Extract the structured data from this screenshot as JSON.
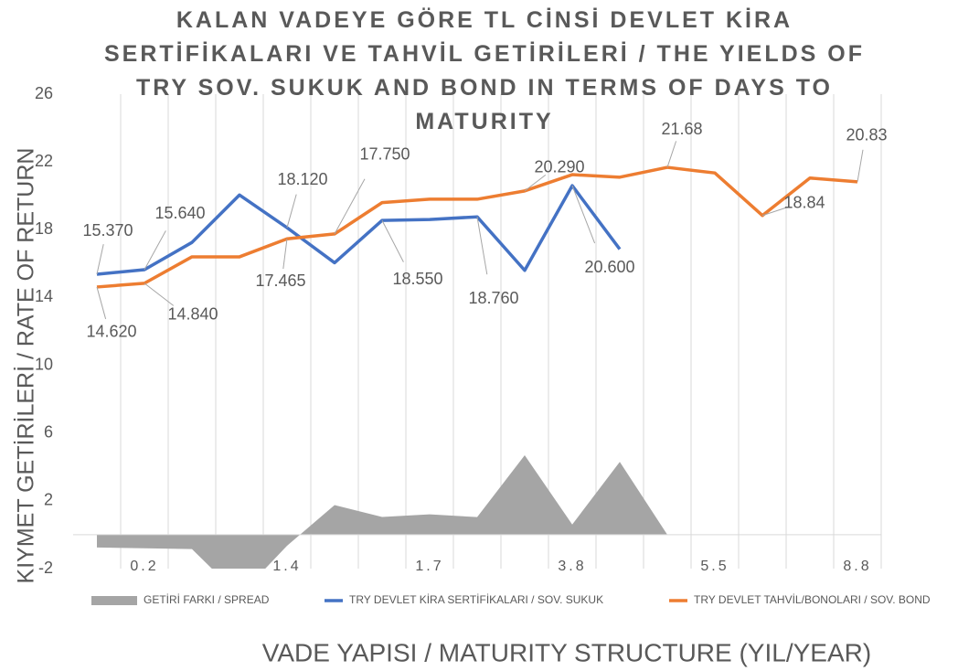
{
  "chart_data": {
    "type": "line",
    "title": "KALAN VADEYE GÖRE TL CİNSİ DEVLET KİRA SERTİFİKALARI VE TAHVİL GETİRİLERİ / THE YIELDS OF TRY SOV. SUKUK AND BOND IN TERMS OF DAYS TO MATURITY",
    "x_label": "VADE YAPISI  / MATURITY STRUCTURE (YIL/YEAR)",
    "y_label": "KIYMET GETİRİLERİ / RATE OF RETURN",
    "categories": [
      null,
      "0.2",
      null,
      null,
      "1.4",
      null,
      null,
      "1.7",
      null,
      null,
      "3.8",
      null,
      null,
      "5.5",
      null,
      null,
      "8.8"
    ],
    "ylim": [
      -2,
      26
    ],
    "yticks": [
      -2,
      2,
      6,
      10,
      14,
      18,
      22,
      26
    ],
    "grid": "vertical",
    "legend": "bottom",
    "series": [
      {
        "name": "GETİRİ FARKI / SPREAD",
        "type": "area",
        "color": "#a5a5a5",
        "values": [
          -0.75,
          -0.8,
          -0.85,
          -3.6,
          -0.65,
          1.75,
          1.05,
          1.2,
          1.04,
          4.69,
          0.6,
          4.3,
          0,
          null,
          null,
          null,
          null
        ]
      },
      {
        "name": "TRY DEVLET KİRA SERTİFİKALARI / SOV. SUKUK",
        "type": "line",
        "color": "#4472c4",
        "values": [
          15.37,
          15.64,
          17.25,
          20.05,
          18.12,
          16.05,
          18.55,
          18.6,
          18.76,
          15.6,
          20.6,
          16.85,
          null,
          null,
          null,
          null,
          null
        ],
        "value_labels": [
          "15.370",
          "15.640",
          null,
          null,
          "18.120",
          null,
          "18.550",
          null,
          "18.760",
          null,
          "20.600",
          null,
          null,
          null,
          null,
          null,
          null
        ]
      },
      {
        "name": "TRY DEVLET TAHVİL/BONOLARI / SOV. BOND",
        "type": "line",
        "color": "#ed7d31",
        "values": [
          14.62,
          14.84,
          16.4,
          16.4,
          17.465,
          17.75,
          19.6,
          19.8,
          19.8,
          20.29,
          21.25,
          21.1,
          21.68,
          21.35,
          18.84,
          21.05,
          20.83
        ],
        "value_labels": [
          "14.620",
          "14.840",
          null,
          null,
          "17.465",
          "17.750",
          null,
          null,
          null,
          "20.290",
          null,
          null,
          "21.68",
          null,
          "18.84",
          null,
          "20.83"
        ]
      }
    ]
  }
}
